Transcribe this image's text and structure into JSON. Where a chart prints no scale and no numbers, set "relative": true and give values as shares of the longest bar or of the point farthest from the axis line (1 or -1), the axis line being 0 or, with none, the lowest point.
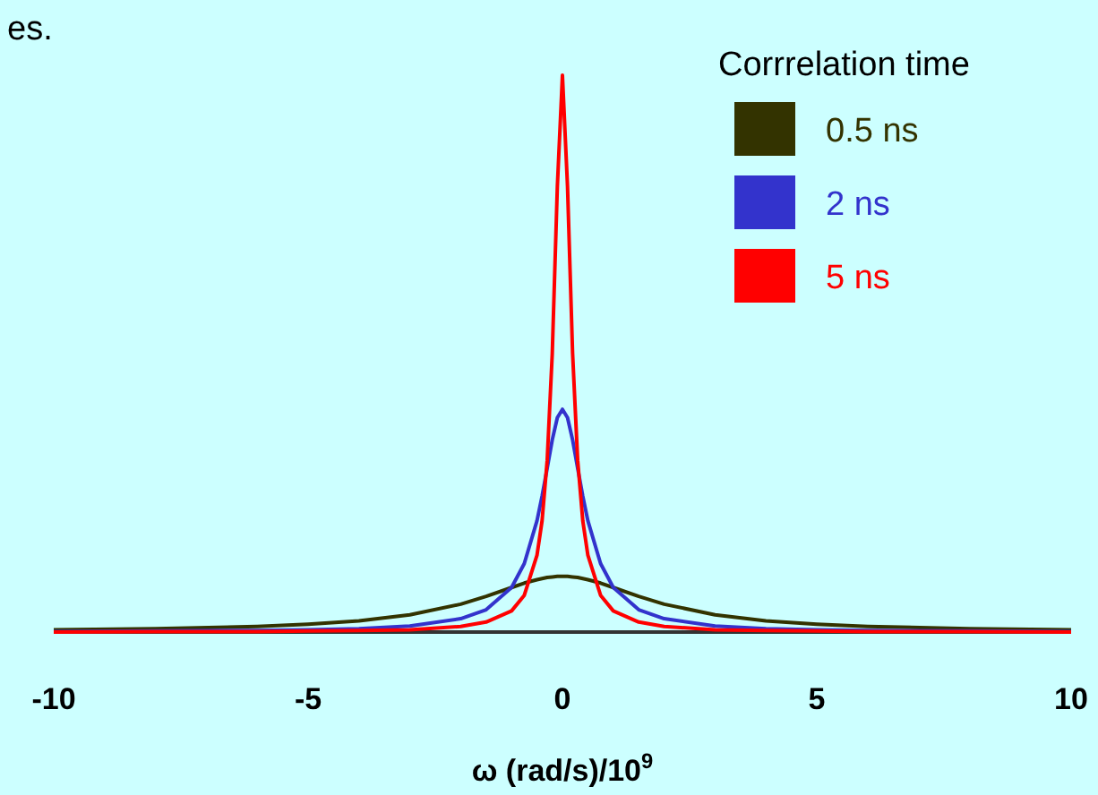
{
  "chart_data": {
    "type": "line",
    "relative": true,
    "xlabel": "ω (rad/s)/10$^{9}$",
    "legend_title": "Corrrelation time",
    "legend": "top right",
    "annotations": [
      "es."
    ],
    "x": [
      -10,
      -8,
      -6,
      -5,
      -4,
      -3,
      -2,
      -1.5,
      -1,
      -0.75,
      -0.5,
      -0.4,
      -0.3,
      -0.2,
      -0.1,
      0,
      0.1,
      0.2,
      0.3,
      0.4,
      0.5,
      0.75,
      1,
      1.5,
      2,
      3,
      4,
      5,
      6,
      8,
      10
    ],
    "xlim": [
      -10,
      10
    ],
    "xticks": [
      -10,
      -5,
      0,
      5,
      10
    ],
    "series": [
      {
        "name": "0.5 ns",
        "color": "#333300",
        "values": [
          0.004,
          0.006,
          0.01,
          0.014,
          0.02,
          0.031,
          0.05,
          0.064,
          0.08,
          0.088,
          0.094,
          0.096,
          0.098,
          0.099,
          0.1,
          0.1,
          0.1,
          0.099,
          0.098,
          0.096,
          0.094,
          0.088,
          0.08,
          0.064,
          0.05,
          0.031,
          0.02,
          0.014,
          0.01,
          0.006,
          0.004
        ]
      },
      {
        "name": "2 ns",
        "color": "#3333cc",
        "values": [
          0.001,
          0.002,
          0.003,
          0.004,
          0.006,
          0.011,
          0.024,
          0.04,
          0.08,
          0.123,
          0.2,
          0.244,
          0.294,
          0.345,
          0.385,
          0.4,
          0.385,
          0.345,
          0.294,
          0.244,
          0.2,
          0.123,
          0.08,
          0.04,
          0.024,
          0.011,
          0.006,
          0.004,
          0.003,
          0.002,
          0.001
        ]
      },
      {
        "name": "5 ns",
        "color": "#ff0000",
        "values": [
          0,
          0.001,
          0.001,
          0.002,
          0.003,
          0.004,
          0.01,
          0.018,
          0.038,
          0.066,
          0.138,
          0.2,
          0.308,
          0.5,
          0.8,
          1,
          0.8,
          0.5,
          0.308,
          0.2,
          0.138,
          0.066,
          0.038,
          0.018,
          0.01,
          0.004,
          0.003,
          0.002,
          0.001,
          0.001,
          0
        ]
      }
    ]
  }
}
